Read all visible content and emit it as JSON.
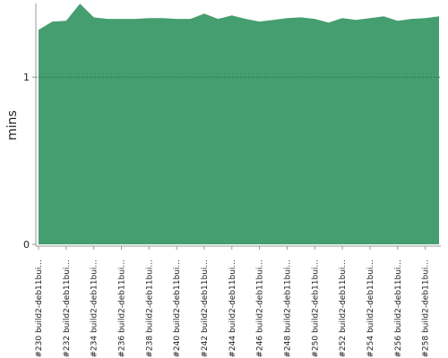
{
  "chart_data": {
    "type": "area",
    "y_label": "mins",
    "categories": [
      "#230 build2-deb11bui...",
      null,
      "#232 build2-deb11bui...",
      null,
      "#234 build2-deb11bui...",
      null,
      "#236 build2-deb11bui...",
      null,
      "#238 build2-deb11bui...",
      null,
      "#240 build2-deb11bui...",
      null,
      "#242 build2-deb11bui...",
      null,
      "#244 build2-deb11bui...",
      null,
      "#246 build2-deb11bui...",
      null,
      "#248 build2-deb11bui...",
      null,
      "#250 build2-deb11bui...",
      null,
      "#252 build2-deb11bui...",
      null,
      "#254 build2-deb11bui...",
      null,
      "#256 build2-deb11bui...",
      null,
      "#258 build2-deb11bui...",
      null
    ],
    "values": [
      1.283,
      1.332,
      1.337,
      1.439,
      1.358,
      1.348,
      1.348,
      1.348,
      1.353,
      1.353,
      1.348,
      1.348,
      1.38,
      1.348,
      1.369,
      1.348,
      1.332,
      1.342,
      1.353,
      1.358,
      1.348,
      1.326,
      1.353,
      1.342,
      1.353,
      1.364,
      1.337,
      1.348,
      1.353,
      1.364
    ],
    "color": "#459e6f",
    "ylim": [
      0,
      1.44
    ],
    "yticks": [
      0,
      1
    ],
    "grid": true
  }
}
